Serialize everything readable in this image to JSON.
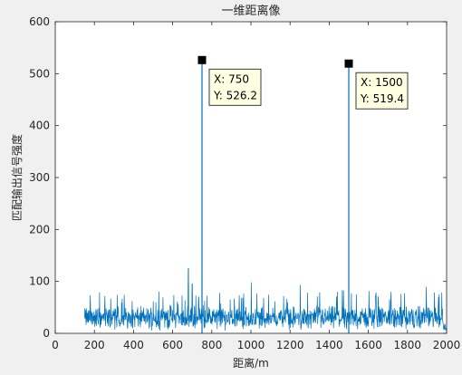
{
  "chart_data": {
    "type": "line",
    "title": "一维距离像",
    "xlabel": "距离/m",
    "ylabel": "匹配输出信号强度",
    "xlim": [
      0,
      2000
    ],
    "ylim": [
      0,
      600
    ],
    "x_ticks": [
      "0",
      "200",
      "400",
      "600",
      "800",
      "1000",
      "1200",
      "1400",
      "1600",
      "1800",
      "2000"
    ],
    "y_ticks": [
      "0",
      "100",
      "200",
      "300",
      "400",
      "500",
      "600"
    ],
    "grid": false,
    "series_color": "#0072BD",
    "series": [
      {
        "x_range": [
          150,
          2000
        ],
        "noise_baseline": "approximately 0-80 with sparse spikes up to about 125 near x=680",
        "peaks": [
          {
            "x": 750,
            "y": 526.2
          },
          {
            "x": 1500,
            "y": 519.4
          }
        ]
      }
    ],
    "datatips": [
      {
        "x_label": "X: 750",
        "y_label": "Y: 526.2",
        "x": 750,
        "y": 526.2
      },
      {
        "x_label": "X: 1500",
        "y_label": "Y: 519.4",
        "x": 1500,
        "y": 519.4
      }
    ]
  }
}
